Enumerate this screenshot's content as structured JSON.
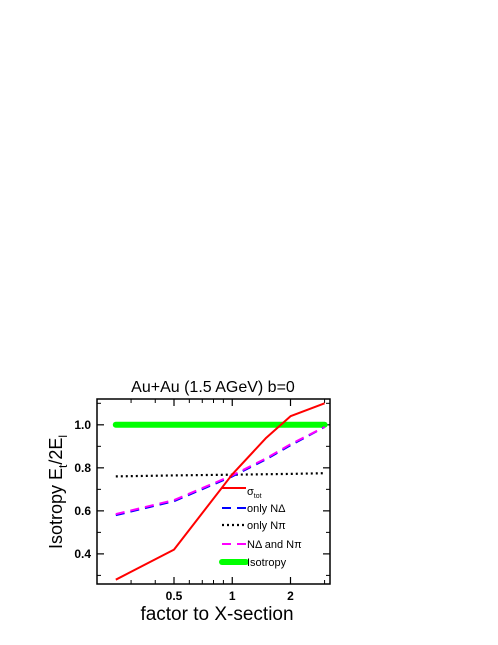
{
  "chart_data": {
    "type": "line",
    "title": "Au+Au (1.5 AGeV) b=0",
    "xlabel": "factor to X-section",
    "ylabel": {
      "base": "Isotropy  E",
      "sub1": "t",
      "mid": "/2E",
      "sub2": "l"
    },
    "x_scale": "log",
    "xlim": [
      0.2,
      3.2
    ],
    "ylim": [
      0.26,
      1.12
    ],
    "x_ticks": [
      {
        "value": 0.5,
        "label": "0.5"
      },
      {
        "value": 1,
        "label": "1"
      },
      {
        "value": 2,
        "label": "2"
      }
    ],
    "y_ticks": [
      {
        "value": 0.4,
        "label": "0.4"
      },
      {
        "value": 0.6,
        "label": "0.6"
      },
      {
        "value": 0.8,
        "label": "0.8"
      },
      {
        "value": 1.0,
        "label": "1.0"
      }
    ],
    "legend_position": "bottom-right",
    "series": [
      {
        "name": "σ",
        "name_sub": "tot",
        "color": "#ff0000",
        "dash": "solid",
        "x": [
          0.25,
          0.5,
          1.0,
          1.5,
          2.0,
          3.0
        ],
        "y": [
          0.28,
          0.42,
          0.77,
          0.94,
          1.04,
          1.1
        ]
      },
      {
        "name": "only NΔ",
        "color": "#0000ff",
        "dash": "dashed",
        "x": [
          0.25,
          0.5,
          1.0,
          1.5,
          2.0,
          3.0
        ],
        "y": [
          0.58,
          0.645,
          0.76,
          0.84,
          0.905,
          0.99
        ]
      },
      {
        "name": "only Nπ",
        "color": "#000000",
        "dash": "dotted",
        "x": [
          0.25,
          0.5,
          1.0,
          2.0,
          3.0
        ],
        "y": [
          0.76,
          0.765,
          0.768,
          0.772,
          0.775
        ]
      },
      {
        "name": "NΔ  and Nπ",
        "color": "#ff00ff",
        "dash": "dashed",
        "x": [
          0.25,
          0.5,
          1.0,
          1.5,
          2.0,
          3.0
        ],
        "y": [
          0.585,
          0.65,
          0.765,
          0.845,
          0.91,
          0.99
        ]
      },
      {
        "name": "Isotropy",
        "color": "#00ff00",
        "dash": "thick",
        "x": [
          0.25,
          3.0
        ],
        "y": [
          1.0,
          1.0
        ]
      }
    ]
  }
}
